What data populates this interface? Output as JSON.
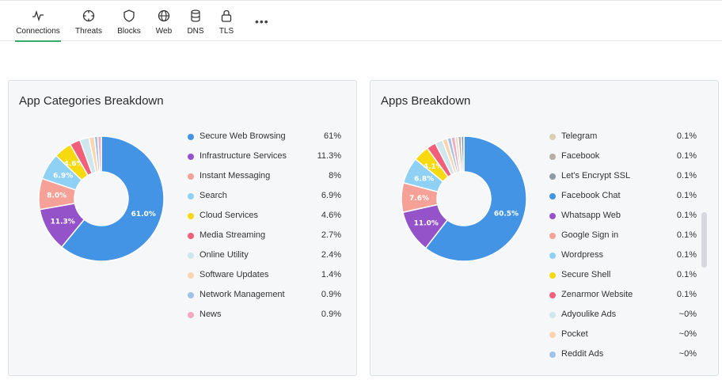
{
  "tabs": [
    {
      "label": "Connections",
      "icon": "activity-icon",
      "active": true
    },
    {
      "label": "Threats",
      "icon": "crosshair-icon",
      "active": false
    },
    {
      "label": "Blocks",
      "icon": "shield-icon",
      "active": false
    },
    {
      "label": "Web",
      "icon": "globe-icon",
      "active": false
    },
    {
      "label": "DNS",
      "icon": "database-icon",
      "active": false
    },
    {
      "label": "TLS",
      "icon": "lock-icon",
      "active": false
    }
  ],
  "more_label": "•••",
  "app_categories": {
    "title": "App Categories Breakdown",
    "items": [
      {
        "name": "Secure Web Browsing",
        "percent": "61%",
        "value": 61.0,
        "color": "#4394e5",
        "slice_label": "61.0%"
      },
      {
        "name": "Infrastructure Services",
        "percent": "11.3%",
        "value": 11.3,
        "color": "#9453c8",
        "slice_label": "11.3%"
      },
      {
        "name": "Instant Messaging",
        "percent": "8%",
        "value": 8.0,
        "color": "#f5a198",
        "slice_label": "8.0%"
      },
      {
        "name": "Search",
        "percent": "6.9%",
        "value": 6.9,
        "color": "#8fd1f5",
        "slice_label": "6.9%"
      },
      {
        "name": "Cloud Services",
        "percent": "4.6%",
        "value": 4.6,
        "color": "#f6d90f",
        "slice_label": "4.6%"
      },
      {
        "name": "Media Streaming",
        "percent": "2.7%",
        "value": 2.7,
        "color": "#f0607a",
        "slice_label": ""
      },
      {
        "name": "Online Utility",
        "percent": "2.4%",
        "value": 2.4,
        "color": "#cfe6ec",
        "slice_label": ""
      },
      {
        "name": "Software Updates",
        "percent": "1.4%",
        "value": 1.4,
        "color": "#fbd4b0",
        "slice_label": ""
      },
      {
        "name": "Network Management",
        "percent": "0.9%",
        "value": 0.9,
        "color": "#9fc3e6",
        "slice_label": ""
      },
      {
        "name": "News",
        "percent": "0.9%",
        "value": 0.9,
        "color": "#f4a9c0",
        "slice_label": ""
      }
    ]
  },
  "apps": {
    "title": "Apps Breakdown",
    "slices": [
      {
        "value": 60.5,
        "color": "#4394e5",
        "slice_label": "60.5%"
      },
      {
        "value": 11.0,
        "color": "#9453c8",
        "slice_label": "11.0%"
      },
      {
        "value": 7.6,
        "color": "#f5a198",
        "slice_label": "7.6%"
      },
      {
        "value": 6.8,
        "color": "#8fd1f5",
        "slice_label": "6.8%"
      },
      {
        "value": 4.1,
        "color": "#f6d90f",
        "slice_label": "4.1%"
      },
      {
        "value": 2.4,
        "color": "#f0607a",
        "slice_label": ""
      },
      {
        "value": 2.0,
        "color": "#cfe6ec",
        "slice_label": ""
      },
      {
        "value": 1.3,
        "color": "#fbd4b0",
        "slice_label": ""
      },
      {
        "value": 1.0,
        "color": "#9fc3e6",
        "slice_label": ""
      },
      {
        "value": 1.0,
        "color": "#f4a9c0",
        "slice_label": ""
      },
      {
        "value": 0.8,
        "color": "#e6ddc7",
        "slice_label": ""
      },
      {
        "value": 0.8,
        "color": "#b8aea8",
        "slice_label": ""
      },
      {
        "value": 0.7,
        "color": "#8e9aa4",
        "slice_label": ""
      }
    ],
    "items": [
      {
        "name": "Telegram",
        "percent": "0.1%",
        "color": "#d9cfb4"
      },
      {
        "name": "Facebook",
        "percent": "0.1%",
        "color": "#b8aea8"
      },
      {
        "name": "Let's Encrypt SSL",
        "percent": "0.1%",
        "color": "#8e9aa4"
      },
      {
        "name": "Facebook Chat",
        "percent": "0.1%",
        "color": "#4394e5"
      },
      {
        "name": "Whatsapp Web",
        "percent": "0.1%",
        "color": "#9453c8"
      },
      {
        "name": "Google Sign in",
        "percent": "0.1%",
        "color": "#f5a198"
      },
      {
        "name": "Wordpress",
        "percent": "0.1%",
        "color": "#8fd1f5"
      },
      {
        "name": "Secure Shell",
        "percent": "0.1%",
        "color": "#f6d90f"
      },
      {
        "name": "Zenarmor Website",
        "percent": "0.1%",
        "color": "#f0607a"
      },
      {
        "name": "Adyoulike Ads",
        "percent": "~0%",
        "color": "#cfe6ec"
      },
      {
        "name": "Pocket",
        "percent": "~0%",
        "color": "#fbd4b0"
      },
      {
        "name": "Reddit Ads",
        "percent": "~0%",
        "color": "#9fc3e6"
      }
    ]
  },
  "chart_data": [
    {
      "type": "pie",
      "title": "App Categories Breakdown",
      "categories": [
        "Secure Web Browsing",
        "Infrastructure Services",
        "Instant Messaging",
        "Search",
        "Cloud Services",
        "Media Streaming",
        "Online Utility",
        "Software Updates",
        "Network Management",
        "News"
      ],
      "values": [
        61,
        11.3,
        8,
        6.9,
        4.6,
        2.7,
        2.4,
        1.4,
        0.9,
        0.9
      ]
    },
    {
      "type": "pie",
      "title": "Apps Breakdown",
      "values": [
        60.5,
        11.0,
        7.6,
        6.8,
        4.1
      ]
    }
  ]
}
